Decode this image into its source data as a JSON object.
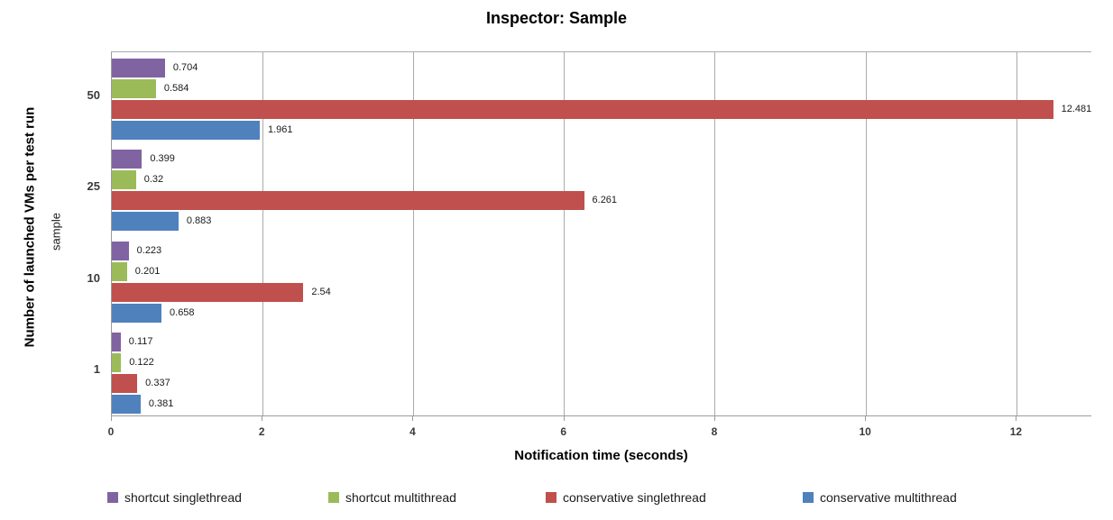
{
  "chart_data": {
    "type": "bar",
    "orientation": "horizontal",
    "title": "Inspector: Sample",
    "xlabel": "Notification time (seconds)",
    "ylabel": "Number of launched VMs per test run",
    "ylabel_inner": "sample",
    "categories": [
      "50",
      "25",
      "10",
      "1"
    ],
    "series": [
      {
        "name": "shortcut singlethread",
        "color": "#8064A2",
        "values": [
          0.704,
          0.399,
          0.223,
          0.117
        ],
        "labels": [
          "0.704",
          "0.399",
          "0.223",
          "0.117"
        ]
      },
      {
        "name": "shortcut multithread",
        "color": "#9BBB59",
        "values": [
          0.584,
          0.32,
          0.201,
          0.122
        ],
        "labels": [
          "0.584",
          "0.32",
          "0.201",
          "0.122"
        ]
      },
      {
        "name": "conservative singlethread",
        "color": "#C0504D",
        "values": [
          12.481,
          6.261,
          2.54,
          0.337
        ],
        "labels": [
          "12.481",
          "6.261",
          "2.54",
          "0.337"
        ]
      },
      {
        "name": "conservative multithread",
        "color": "#4F81BD",
        "values": [
          1.961,
          0.883,
          0.658,
          0.381
        ],
        "labels": [
          "1.961",
          "0.883",
          "0.658",
          "0.381"
        ]
      }
    ],
    "xlim": [
      0,
      13
    ],
    "xticks": [
      0,
      2,
      4,
      6,
      8,
      10,
      12
    ],
    "grid": true,
    "legend_position": "bottom",
    "colors": {
      "gridline": "#ababab",
      "axis_line": "#9b9b9b",
      "tick_text": "#3a3a3a"
    }
  }
}
